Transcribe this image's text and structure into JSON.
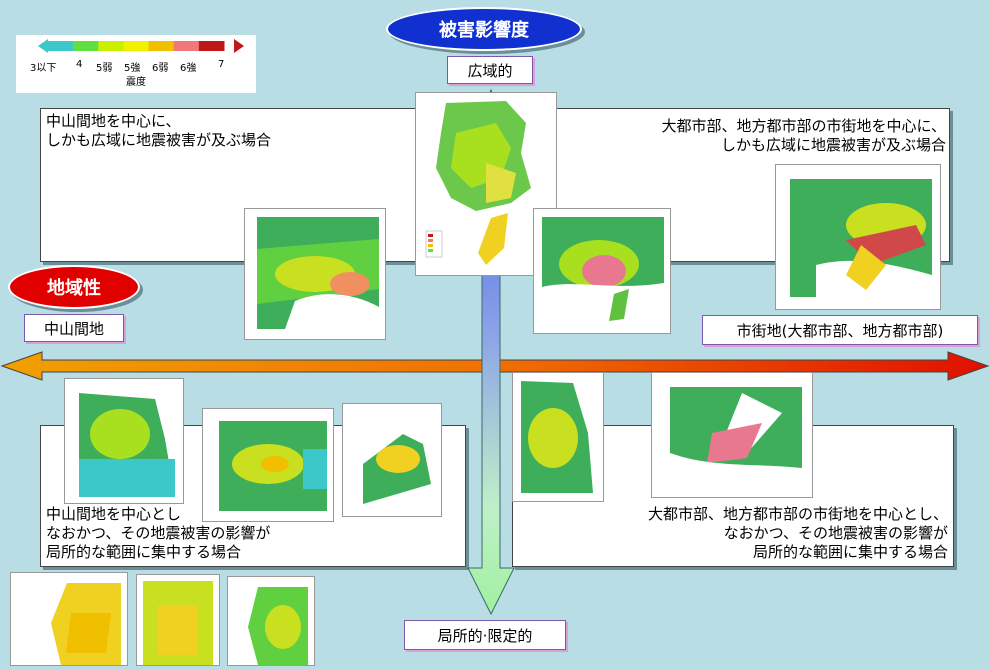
{
  "title": "被害影響度",
  "axis": {
    "vertical_top": "広域的",
    "vertical_bottom": "局所的·限定的",
    "horizontal_title": "地域性",
    "horizontal_left": "中山間地",
    "horizontal_right": "市街地(大都市部、地方都市部)"
  },
  "legend": {
    "ticks": [
      "3以下",
      "4",
      "5弱",
      "5強",
      "6弱",
      "6強",
      "7"
    ],
    "caption": "震度",
    "colors": [
      "#3cc8c8",
      "#60e040",
      "#c8f000",
      "#f0f000",
      "#f0c000",
      "#f07878",
      "#c01818"
    ]
  },
  "quadrants": {
    "top_left": [
      "中山間地を中心に、",
      "しかも広域に地震被害が及ぶ場合"
    ],
    "top_right": [
      "大都市部、地方都市部の市街地を中心に、",
      "しかも広域に地震被害が及ぶ場合"
    ],
    "bottom_left": [
      "中山間地を中心とし",
      "なおかつ、その地震被害の影響が",
      "局所的な範囲に集中する場合"
    ],
    "bottom_right": [
      "大都市部、地方都市部の市街地を中心とし、",
      "なおかつ、その地震被害の影響が",
      "局所的な範囲に集中する場合"
    ]
  },
  "colors": {
    "oval_blue": "#1030d0",
    "oval_red": "#e00000",
    "arrow_orange": "#f08000"
  }
}
